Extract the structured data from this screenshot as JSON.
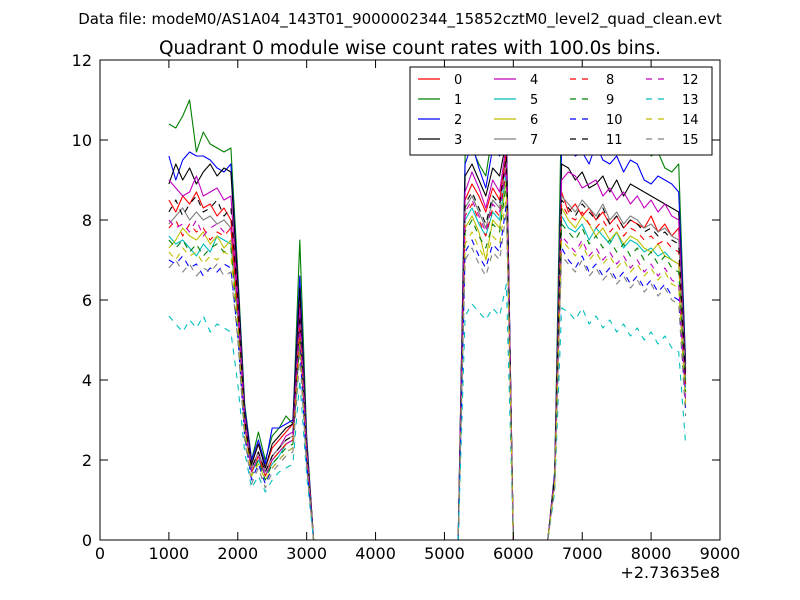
{
  "chart_data": {
    "type": "line",
    "suptitle": "Data file: modeM0/AS1A04_143T01_9000002344_15852cztM0_level2_quad_clean.evt",
    "title": "Quadrant 0 module wise count rates with 100.0s bins.",
    "xlabel": "",
    "ylabel": "",
    "x_offset_label": "+2.73635e8",
    "xlim": [
      0,
      9000
    ],
    "ylim": [
      0,
      12
    ],
    "x_ticks": [
      0,
      1000,
      2000,
      3000,
      4000,
      5000,
      6000,
      7000,
      8000,
      9000
    ],
    "y_ticks": [
      0,
      2,
      4,
      6,
      8,
      10,
      12
    ],
    "grid": false,
    "legend": {
      "location": "top-right",
      "columns": 4
    },
    "x": [
      1000,
      1100,
      1200,
      1300,
      1400,
      1500,
      1600,
      1700,
      1800,
      1900,
      2000,
      2100,
      2200,
      2300,
      2400,
      2500,
      2600,
      2700,
      2800,
      2900,
      3000,
      3100,
      5200,
      5300,
      5400,
      5500,
      5600,
      5700,
      5800,
      5900,
      6000,
      6500,
      6600,
      6700,
      6800,
      6900,
      7000,
      7100,
      7200,
      7300,
      7400,
      7500,
      7600,
      7700,
      7800,
      7900,
      8000,
      8100,
      8200,
      8300,
      8400,
      8500
    ],
    "series": [
      {
        "name": "0",
        "style": "solid",
        "color": "#ff0000",
        "values": [
          8.5,
          8.2,
          8.6,
          8.4,
          8.7,
          8.3,
          8.4,
          8.1,
          8.3,
          8.0,
          6.0,
          3.2,
          1.9,
          2.4,
          1.8,
          2.3,
          2.5,
          2.7,
          2.9,
          5.9,
          2.4,
          0,
          0,
          8.5,
          8.9,
          8.6,
          8.2,
          8.8,
          8.5,
          9.7,
          0,
          0,
          1.6,
          8.7,
          8.2,
          8.4,
          8.1,
          8.3,
          8.0,
          8.2,
          7.9,
          8.1,
          7.8,
          8.0,
          7.9,
          7.8,
          8.1,
          7.7,
          7.9,
          7.6,
          7.8,
          4.2
        ]
      },
      {
        "name": "1",
        "style": "solid",
        "color": "#008000",
        "values": [
          10.4,
          10.3,
          10.6,
          11.0,
          9.7,
          10.2,
          9.9,
          9.8,
          9.7,
          9.8,
          6.7,
          3.4,
          2.0,
          2.7,
          2.0,
          2.6,
          2.8,
          3.1,
          2.9,
          7.5,
          2.6,
          0,
          0,
          9.6,
          9.8,
          9.4,
          9.1,
          10.2,
          10.1,
          9.9,
          0,
          0,
          1.7,
          11.0,
          10.2,
          10.1,
          10.3,
          10.2,
          9.9,
          10.0,
          10.1,
          9.8,
          9.9,
          10.2,
          9.8,
          9.9,
          9.6,
          9.7,
          9.3,
          9.2,
          9.4,
          4.4
        ]
      },
      {
        "name": "2",
        "style": "solid",
        "color": "#0000ff",
        "values": [
          9.6,
          9.0,
          9.5,
          9.7,
          9.6,
          9.6,
          9.5,
          9.3,
          9.2,
          9.4,
          6.5,
          3.3,
          2.0,
          2.5,
          1.9,
          2.8,
          2.8,
          2.9,
          3.0,
          6.6,
          2.5,
          0,
          0,
          9.4,
          9.9,
          9.3,
          8.8,
          9.8,
          9.6,
          10.2,
          0,
          0,
          1.7,
          9.8,
          9.8,
          9.6,
          9.7,
          9.4,
          9.9,
          9.5,
          9.4,
          9.6,
          9.2,
          9.5,
          9.4,
          9.0,
          8.9,
          9.1,
          9.0,
          8.9,
          8.7,
          4.4
        ]
      },
      {
        "name": "3",
        "style": "solid",
        "color": "#000000",
        "values": [
          8.9,
          9.4,
          9.0,
          9.3,
          8.9,
          9.2,
          9.4,
          9.1,
          9.3,
          9.2,
          6.4,
          3.2,
          1.9,
          2.4,
          1.8,
          2.4,
          2.6,
          2.8,
          2.9,
          6.3,
          2.4,
          0,
          0,
          9.1,
          9.4,
          9.0,
          8.6,
          9.3,
          9.1,
          10.0,
          0,
          0,
          1.6,
          9.4,
          9.3,
          9.0,
          9.2,
          8.8,
          8.9,
          9.1,
          8.7,
          9.0,
          8.6,
          8.9,
          8.8,
          8.7,
          8.6,
          8.5,
          8.4,
          8.3,
          8.2,
          4.3
        ]
      },
      {
        "name": "4",
        "style": "solid",
        "color": "#bf00bf",
        "values": [
          9.0,
          8.8,
          8.6,
          8.7,
          9.1,
          8.6,
          8.7,
          8.8,
          8.5,
          8.6,
          6.1,
          3.1,
          1.8,
          2.2,
          1.7,
          2.1,
          2.3,
          2.6,
          2.7,
          5.8,
          2.3,
          0,
          0,
          8.7,
          9.2,
          8.8,
          8.3,
          9.0,
          8.7,
          9.9,
          0,
          0,
          1.6,
          9.0,
          9.2,
          9.1,
          8.8,
          8.9,
          9.0,
          8.6,
          8.8,
          8.5,
          8.7,
          8.4,
          8.6,
          8.3,
          8.5,
          8.2,
          8.4,
          8.1,
          8.0,
          4.1
        ]
      },
      {
        "name": "5",
        "style": "solid",
        "color": "#00bfbf",
        "values": [
          7.6,
          7.4,
          7.5,
          7.3,
          7.1,
          7.4,
          7.2,
          7.6,
          7.5,
          7.4,
          5.5,
          2.9,
          1.7,
          2.0,
          1.6,
          1.9,
          2.1,
          2.4,
          2.5,
          5.2,
          2.1,
          0,
          0,
          8.0,
          8.3,
          7.9,
          7.6,
          8.2,
          8.0,
          9.2,
          0,
          0,
          1.5,
          8.1,
          7.8,
          7.7,
          7.9,
          7.5,
          7.8,
          7.6,
          7.4,
          7.7,
          7.3,
          7.5,
          7.4,
          7.2,
          7.3,
          7.1,
          7.2,
          7.0,
          6.9,
          3.8
        ]
      },
      {
        "name": "6",
        "style": "solid",
        "color": "#bfbf00",
        "values": [
          7.3,
          7.5,
          7.8,
          7.6,
          7.5,
          7.7,
          7.4,
          7.6,
          7.3,
          7.5,
          5.6,
          2.8,
          1.7,
          2.1,
          1.6,
          2.0,
          2.2,
          2.4,
          2.5,
          5.1,
          2.1,
          0,
          0,
          7.8,
          8.1,
          7.7,
          7.0,
          8.0,
          7.8,
          9.0,
          0,
          0,
          1.5,
          8.3,
          8.0,
          7.8,
          8.1,
          7.9,
          7.6,
          7.8,
          7.5,
          7.7,
          7.4,
          7.6,
          7.5,
          7.3,
          7.2,
          7.4,
          7.1,
          7.0,
          6.9,
          3.9
        ]
      },
      {
        "name": "7",
        "style": "solid",
        "color": "#7f7f7f",
        "values": [
          7.9,
          8.1,
          8.3,
          8.0,
          8.2,
          8.0,
          8.1,
          7.9,
          8.0,
          7.8,
          5.8,
          3.0,
          1.8,
          2.2,
          1.7,
          2.1,
          2.3,
          2.5,
          2.6,
          5.5,
          2.2,
          0,
          0,
          8.3,
          8.6,
          8.2,
          7.8,
          8.5,
          8.3,
          9.5,
          0,
          0,
          1.6,
          8.6,
          8.4,
          8.2,
          8.5,
          8.3,
          8.1,
          8.4,
          8.0,
          8.2,
          7.9,
          8.1,
          8.0,
          7.8,
          7.9,
          7.7,
          7.8,
          7.6,
          7.5,
          4.0
        ]
      },
      {
        "name": "8",
        "style": "dashed",
        "color": "#ff0000",
        "values": [
          7.8,
          8.0,
          7.6,
          7.9,
          7.7,
          7.8,
          7.5,
          7.7,
          7.6,
          7.8,
          5.7,
          2.9,
          1.7,
          2.1,
          1.6,
          2.0,
          2.2,
          2.4,
          2.5,
          5.3,
          2.1,
          0,
          0,
          8.1,
          8.4,
          8.0,
          7.6,
          8.3,
          8.1,
          9.3,
          0,
          0,
          1.5,
          8.4,
          8.1,
          8.0,
          8.2,
          7.9,
          7.8,
          8.0,
          7.7,
          7.9,
          7.6,
          7.8,
          7.7,
          7.5,
          7.6,
          7.4,
          7.5,
          7.3,
          7.2,
          3.9
        ]
      },
      {
        "name": "9",
        "style": "dashed",
        "color": "#008000",
        "values": [
          7.5,
          7.3,
          7.5,
          7.2,
          7.4,
          7.1,
          7.3,
          7.4,
          7.2,
          7.3,
          5.4,
          2.8,
          1.6,
          2.0,
          1.5,
          1.9,
          2.1,
          2.3,
          2.4,
          5.0,
          2.0,
          0,
          0,
          7.7,
          8.0,
          7.6,
          7.3,
          7.9,
          7.7,
          8.9,
          0,
          0,
          1.5,
          7.9,
          7.7,
          7.5,
          7.8,
          7.4,
          7.6,
          7.3,
          7.5,
          7.2,
          7.4,
          7.1,
          7.3,
          7.0,
          7.2,
          6.9,
          7.1,
          6.8,
          6.7,
          3.7
        ]
      },
      {
        "name": "10",
        "style": "dashed",
        "color": "#0000ff",
        "values": [
          7.0,
          6.9,
          7.1,
          6.8,
          6.9,
          6.6,
          6.8,
          6.7,
          6.9,
          6.8,
          5.1,
          2.6,
          1.5,
          1.9,
          1.4,
          1.8,
          2.0,
          2.2,
          2.3,
          4.8,
          1.9,
          0,
          0,
          7.2,
          7.5,
          7.1,
          6.8,
          7.4,
          7.2,
          8.4,
          0,
          0,
          1.4,
          7.3,
          7.0,
          6.8,
          7.1,
          6.7,
          6.9,
          6.6,
          6.8,
          6.5,
          6.7,
          6.4,
          6.6,
          6.3,
          6.5,
          6.2,
          6.4,
          6.1,
          6.0,
          3.3
        ]
      },
      {
        "name": "11",
        "style": "dashed",
        "color": "#000000",
        "values": [
          8.2,
          8.5,
          8.1,
          8.4,
          8.6,
          8.2,
          8.3,
          8.5,
          8.1,
          8.3,
          6.0,
          3.0,
          1.8,
          2.2,
          1.7,
          2.1,
          2.3,
          2.5,
          2.6,
          5.6,
          2.2,
          0,
          0,
          8.4,
          8.7,
          8.3,
          7.9,
          8.6,
          8.4,
          9.6,
          0,
          0,
          1.6,
          8.5,
          8.3,
          8.1,
          8.4,
          8.2,
          8.0,
          8.3,
          7.9,
          8.1,
          7.8,
          8.0,
          7.9,
          7.7,
          7.8,
          7.6,
          7.7,
          7.5,
          7.4,
          4.0
        ]
      },
      {
        "name": "12",
        "style": "dashed",
        "color": "#bf00bf",
        "values": [
          8.0,
          7.8,
          7.9,
          7.7,
          8.0,
          7.6,
          7.8,
          7.9,
          7.7,
          7.8,
          5.8,
          2.9,
          1.7,
          2.1,
          1.6,
          2.0,
          2.2,
          2.4,
          2.5,
          5.4,
          2.1,
          0,
          0,
          8.2,
          8.5,
          8.1,
          7.7,
          8.4,
          8.2,
          9.4,
          0,
          0,
          1.5,
          7.6,
          7.4,
          7.2,
          7.5,
          7.1,
          7.3,
          7.0,
          7.2,
          6.9,
          7.1,
          6.8,
          7.0,
          6.7,
          6.9,
          6.6,
          6.8,
          6.5,
          6.4,
          3.5
        ]
      },
      {
        "name": "13",
        "style": "dashed",
        "color": "#00bfbf",
        "values": [
          5.6,
          5.4,
          5.2,
          5.5,
          5.3,
          5.6,
          5.2,
          5.4,
          5.3,
          5.2,
          3.9,
          2.2,
          1.3,
          1.6,
          1.2,
          1.5,
          1.7,
          1.8,
          1.9,
          4.0,
          1.6,
          0,
          0,
          5.6,
          5.9,
          5.7,
          5.5,
          5.8,
          5.6,
          6.4,
          0,
          0,
          1.2,
          5.8,
          5.7,
          5.5,
          5.8,
          5.4,
          5.6,
          5.3,
          5.5,
          5.2,
          5.4,
          5.1,
          5.3,
          5.0,
          5.2,
          4.9,
          5.1,
          4.8,
          4.7,
          2.4
        ]
      },
      {
        "name": "14",
        "style": "dashed",
        "color": "#bfbf00",
        "values": [
          7.2,
          7.0,
          7.3,
          7.1,
          7.2,
          6.9,
          7.1,
          7.0,
          7.2,
          7.1,
          5.3,
          2.7,
          1.6,
          1.9,
          1.5,
          1.8,
          2.0,
          2.2,
          2.3,
          4.9,
          1.9,
          0,
          0,
          7.4,
          7.7,
          7.3,
          7.0,
          7.6,
          7.4,
          8.6,
          0,
          0,
          1.4,
          7.5,
          7.3,
          7.1,
          7.4,
          7.0,
          7.2,
          6.9,
          7.1,
          6.8,
          7.0,
          6.7,
          6.9,
          6.6,
          6.8,
          6.5,
          6.7,
          6.4,
          6.3,
          3.4
        ]
      },
      {
        "name": "15",
        "style": "dashed",
        "color": "#7f7f7f",
        "values": [
          6.8,
          7.0,
          6.7,
          6.9,
          6.6,
          6.8,
          6.7,
          6.9,
          6.6,
          6.7,
          5.0,
          2.5,
          1.4,
          1.8,
          1.3,
          1.7,
          1.9,
          2.1,
          2.2,
          4.6,
          1.8,
          0,
          0,
          7.0,
          7.3,
          6.9,
          6.6,
          7.2,
          7.0,
          8.2,
          0,
          0,
          1.3,
          7.1,
          6.9,
          6.7,
          7.0,
          6.6,
          6.8,
          6.5,
          6.7,
          6.4,
          6.6,
          6.3,
          6.5,
          6.2,
          6.4,
          6.1,
          6.3,
          6.0,
          5.9,
          3.1
        ]
      }
    ]
  }
}
